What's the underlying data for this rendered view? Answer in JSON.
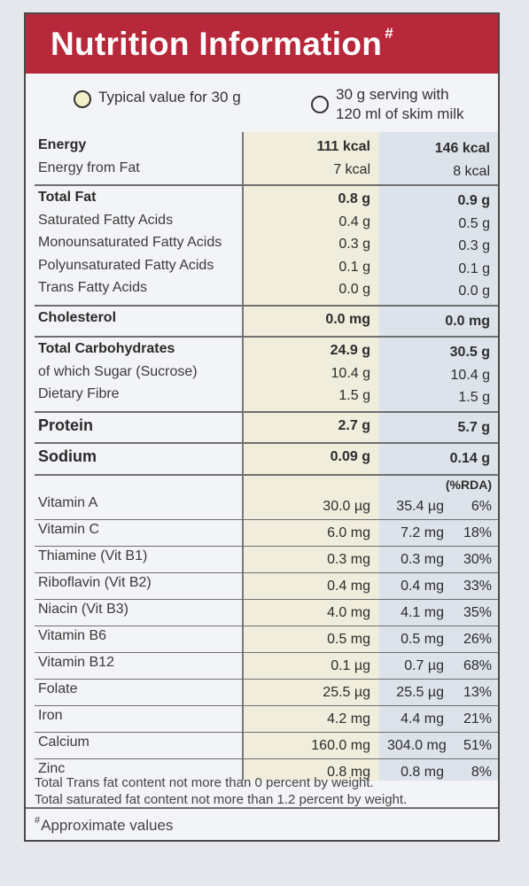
{
  "title": "Nutrition Information",
  "title_mark": "#",
  "legend": {
    "col_a": "Typical value for 30 g",
    "col_b_line1": "30 g serving with",
    "col_b_line2": "120 ml of skim milk"
  },
  "colors": {
    "banner": "#b6283a",
    "col_a_bg": "#f0eddc",
    "col_b_bg": "#dde3eb"
  },
  "macro_groups": [
    {
      "rows": [
        {
          "label": "Energy",
          "a": "111 kcal",
          "b": "146 kcal",
          "bold": true
        },
        {
          "label": "Energy from Fat",
          "a": "7 kcal",
          "b": "8 kcal",
          "bold": false
        }
      ]
    },
    {
      "rows": [
        {
          "label": "Total Fat",
          "a": "0.8 g",
          "b": "0.9 g",
          "bold": true
        },
        {
          "label": "Saturated Fatty Acids",
          "a": "0.4 g",
          "b": "0.5 g",
          "bold": false
        },
        {
          "label": "Monounsaturated Fatty Acids",
          "a": "0.3 g",
          "b": "0.3 g",
          "bold": false
        },
        {
          "label": "Polyunsaturated Fatty Acids",
          "a": "0.1 g",
          "b": "0.1 g",
          "bold": false
        },
        {
          "label": "Trans Fatty Acids",
          "a": "0.0 g",
          "b": "0.0 g",
          "bold": false
        }
      ]
    },
    {
      "rows": [
        {
          "label": "Cholesterol",
          "a": "0.0 mg",
          "b": "0.0 mg",
          "bold": true
        }
      ]
    },
    {
      "rows": [
        {
          "label": "Total Carbohydrates",
          "a": "24.9 g",
          "b": "30.5 g",
          "bold": true
        },
        {
          "label": "of which Sugar (Sucrose)",
          "a": "10.4 g",
          "b": "10.4 g",
          "bold": false
        },
        {
          "label": "Dietary Fibre",
          "a": "1.5 g",
          "b": "1.5 g",
          "bold": false
        }
      ]
    },
    {
      "rows": [
        {
          "label": "Protein",
          "a": "2.7 g",
          "b": "5.7 g",
          "bold": true
        }
      ]
    },
    {
      "rows": [
        {
          "label": "Sodium",
          "a": "0.09 g",
          "b": "0.14 g",
          "bold": true
        }
      ]
    }
  ],
  "rda_header": "(%RDA)",
  "vitamins": [
    {
      "label": "Vitamin A",
      "a": "30.0 µg",
      "b": "35.4 µg",
      "pct": "6%"
    },
    {
      "label": "Vitamin C",
      "a": "6.0 mg",
      "b": "7.2 mg",
      "pct": "18%"
    },
    {
      "label": "Thiamine (Vit B1)",
      "a": "0.3 mg",
      "b": "0.3 mg",
      "pct": "30%"
    },
    {
      "label": "Riboflavin (Vit B2)",
      "a": "0.4 mg",
      "b": "0.4 mg",
      "pct": "33%"
    },
    {
      "label": "Niacin (Vit B3)",
      "a": "4.0 mg",
      "b": "4.1 mg",
      "pct": "35%"
    },
    {
      "label": "Vitamin B6",
      "a": "0.5 mg",
      "b": "0.5 mg",
      "pct": "26%"
    },
    {
      "label": "Vitamin B12",
      "a": "0.1 µg",
      "b": "0.7 µg",
      "pct": "68%"
    },
    {
      "label": "Folate",
      "a": "25.5 µg",
      "b": "25.5 µg",
      "pct": "13%"
    },
    {
      "label": "Iron",
      "a": "4.2 mg",
      "b": "4.4 mg",
      "pct": "21%"
    },
    {
      "label": "Calcium",
      "a": "160.0 mg",
      "b": "304.0 mg",
      "pct": "51%"
    },
    {
      "label": "Zinc",
      "a": "0.8 mg",
      "b": "0.8 mg",
      "pct": "8%"
    }
  ],
  "footnotes": [
    "Total Trans fat content not more than 0 percent by weight.",
    "Total saturated fat content not more than 1.2  percent by weight."
  ],
  "approx_mark": "#",
  "approx_text": "Approximate values"
}
